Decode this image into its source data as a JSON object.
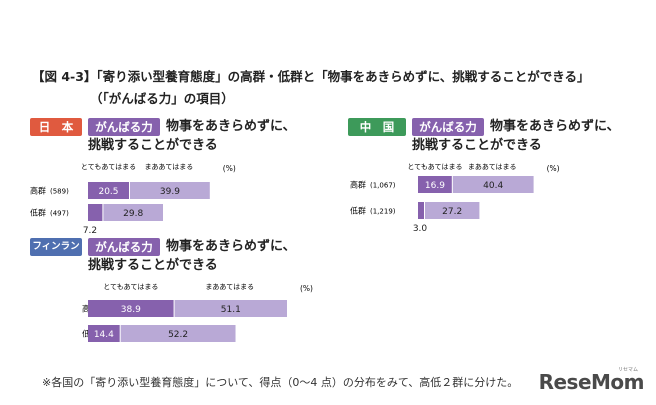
{
  "figure": {
    "title": "【図 4-3】「寄り添い型養育態度」の高群・低群と「物事をあきらめずに、挑戦することができる」",
    "subtitle": "（「がんばる力」の項目）",
    "footnote": "※各国の「寄り添い型養育態度」について、得点（0〜4 点）の分布をみて、高低２群に分けた。",
    "logo": "ReseMom",
    "logo_small": "リセマム"
  },
  "colors": {
    "dark_purple": "#8661ad",
    "light_purple": "#b9a9d6",
    "japan": "#e05a3f",
    "china": "#3d9a5a",
    "finland": "#4f6fb0"
  },
  "chart_data": [
    {
      "type": "bar",
      "orientation": "horizontal-stacked",
      "country": "日　本",
      "badge": "がんばる力",
      "item": "物事をあきらめずに、挑戦することができる",
      "item_line1": "物事をあきらめずに、",
      "item_line2": "挑戦することができる",
      "unit": "(%)",
      "legend": [
        "とてもあてはまる",
        "まああてはまる"
      ],
      "categories": [
        "高群",
        "低群"
      ],
      "n_labels": [
        "(589)",
        "(497)"
      ],
      "series": [
        {
          "name": "とてもあてはまる",
          "values": [
            20.5,
            7.2
          ]
        },
        {
          "name": "まああてはまる",
          "values": [
            39.9,
            29.8
          ]
        }
      ]
    },
    {
      "type": "bar",
      "orientation": "horizontal-stacked",
      "country": "中　国",
      "badge": "がんばる力",
      "item": "物事をあきらめずに、挑戦することができる",
      "item_line1": "物事をあきらめずに、",
      "item_line2": "挑戦することができる",
      "unit": "(%)",
      "legend": [
        "とてもあてはまる",
        "まああてはまる"
      ],
      "categories": [
        "高群",
        "低群"
      ],
      "n_labels": [
        "(1,067)",
        "(1,219)"
      ],
      "series": [
        {
          "name": "とてもあてはまる",
          "values": [
            16.9,
            3.0
          ]
        },
        {
          "name": "まああてはまる",
          "values": [
            40.4,
            27.2
          ]
        }
      ]
    },
    {
      "type": "bar",
      "orientation": "horizontal-stacked",
      "country": "フィンランド",
      "badge": "がんばる力",
      "item": "物事をあきらめずに、挑戦することができる",
      "item_line1": "物事をあきらめずに、",
      "item_line2": "挑戦することができる",
      "unit": "(%)",
      "legend": [
        "とてもあてはまる",
        "まああてはまる"
      ],
      "categories": [
        "高群",
        "低群"
      ],
      "n_labels": [
        "(90)",
        "(90)"
      ],
      "series": [
        {
          "name": "とてもあてはまる",
          "values": [
            38.9,
            14.4
          ]
        },
        {
          "name": "まああてはまる",
          "values": [
            51.1,
            52.2
          ]
        }
      ]
    }
  ]
}
